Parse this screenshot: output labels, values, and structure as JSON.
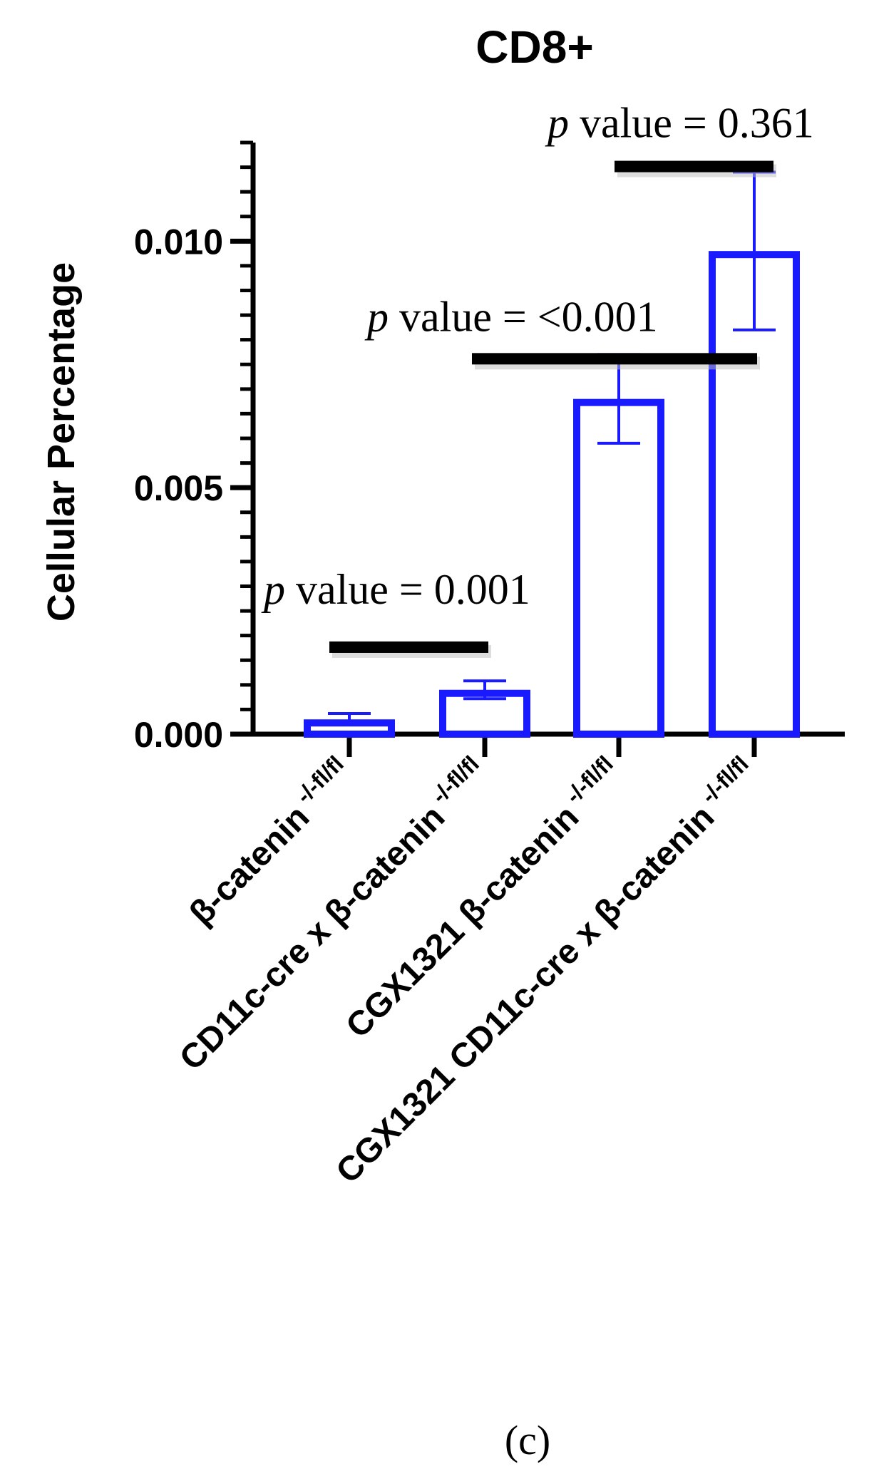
{
  "chart_data": {
    "type": "bar",
    "title": "CD8+",
    "ylabel": "Cellular Percentage",
    "xlabel": "",
    "ylim": [
      0,
      0.012
    ],
    "yticks": [
      0.0,
      0.005,
      0.01
    ],
    "ytick_labels": [
      "0.000",
      "0.005",
      "0.010"
    ],
    "categories": [
      {
        "main": "β-catenin",
        "sup": "-/-fl/fl"
      },
      {
        "main": "CD11c-cre x β-catenin",
        "sup": "-/-fl/fl"
      },
      {
        "main": "CGX1321 β-catenin",
        "sup": "-/-fl/fl"
      },
      {
        "main": "CGX1321 CD11c-cre x β-catenin",
        "sup": "-/-fl/fl"
      }
    ],
    "values": [
      0.0003,
      0.0009,
      0.0068,
      0.0098
    ],
    "errors": [
      0.00012,
      0.00018,
      0.0009,
      0.0016
    ],
    "bar_color": "#1a1aff",
    "comparisons": [
      {
        "from": 0,
        "to": 1,
        "y": 0.00175,
        "p": "p",
        "text": " value = 0.001"
      },
      {
        "from": 1,
        "to": 3,
        "y": 0.0076,
        "p": "p",
        "text": " value = <0.001"
      },
      {
        "from": 2,
        "to": 3,
        "y": 0.0115,
        "p": "p",
        "text": " value = 0.361"
      }
    ],
    "grid": false,
    "legend": "none"
  },
  "panel_label": "(c)"
}
